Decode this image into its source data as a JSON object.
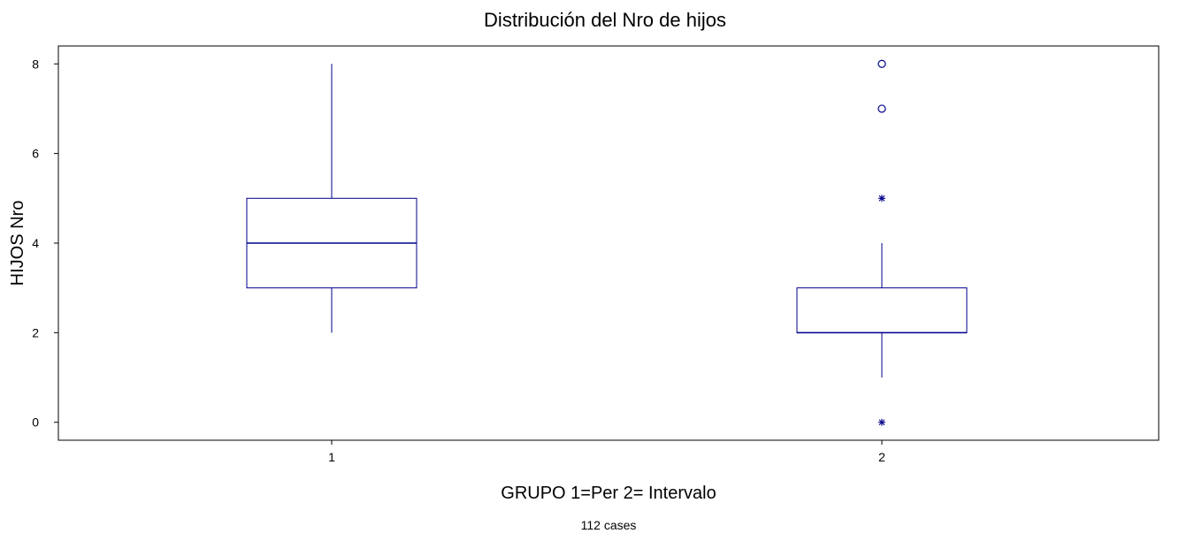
{
  "chart_data": {
    "type": "boxplot",
    "title": "Distribución del Nro de hijos",
    "xlabel": "GRUPO  1=Per  2= Intervalo",
    "ylabel": "HIJOS Nro",
    "footnote": "112 cases",
    "categories": [
      "1",
      "2"
    ],
    "y_ticks": [
      0,
      2,
      4,
      6,
      8
    ],
    "ylim": [
      -0.4,
      8.4
    ],
    "grid": false,
    "legend": "none",
    "box_color": "#00008B",
    "boxes": [
      {
        "group": "1",
        "whisker_low": 2,
        "q1": 3,
        "median": 4,
        "q3": 5,
        "whisker_high": 8,
        "outliers": [],
        "extremes": []
      },
      {
        "group": "2",
        "whisker_low": 1,
        "q1": 2,
        "median": 2,
        "q3": 3,
        "whisker_high": 4,
        "outliers": [
          7,
          8
        ],
        "extremes": [
          0,
          5
        ]
      }
    ]
  }
}
